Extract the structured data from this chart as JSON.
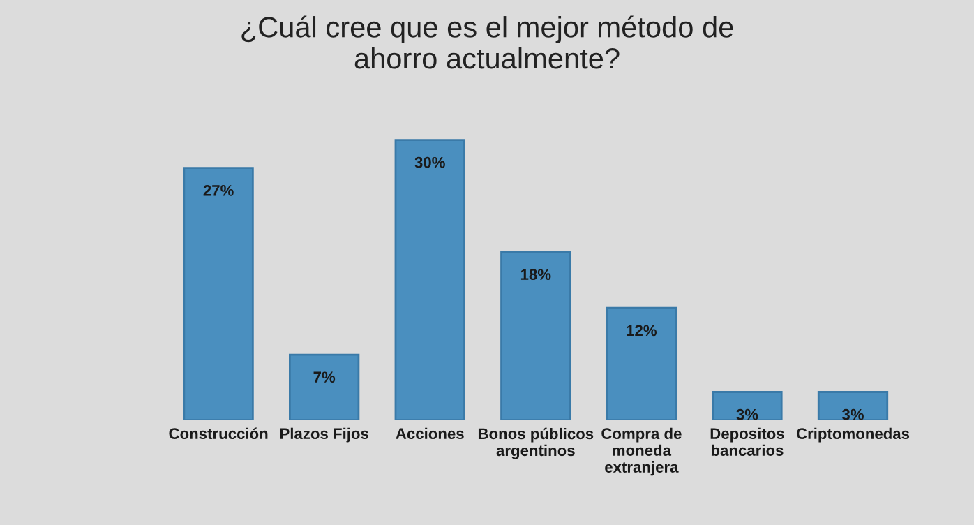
{
  "chart_data": {
    "type": "bar",
    "title": "¿Cuál cree que es el mejor método de\nahorro actualmente?",
    "categories": [
      "Construcción",
      "Plazos Fijos",
      "Acciones",
      "Bonos públicos\nargentinos",
      "Compra de\nmoneda\nextranjera",
      "Depositos\nbancarios",
      "Criptomonedas"
    ],
    "values": [
      27,
      7,
      30,
      18,
      12,
      3,
      3
    ],
    "value_labels": [
      "27%",
      "7%",
      "30%",
      "18%",
      "12%",
      "3%",
      "3%"
    ],
    "color": "#4a8fbf",
    "grid": false,
    "legend": false
  }
}
